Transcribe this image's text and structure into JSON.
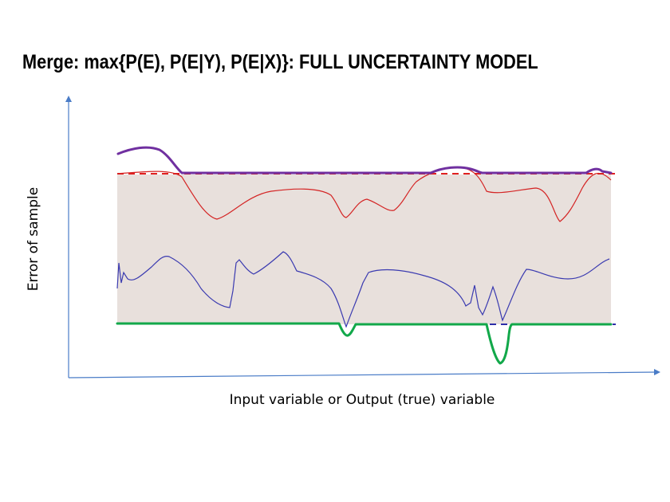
{
  "slide": {
    "title": "Merge: max{P(E), P(E|Y), P(E|X)}: FULL UNCERTAINTY MODEL"
  },
  "diagram": {
    "x_axis_label": "Input variable or Output (true) variable",
    "y_axis_label": "Error of sample",
    "colors": {
      "axis": "#4a7cc7",
      "uncertainty_band": "#e8e0dc",
      "upper_bound_dashed": "#e02020",
      "lower_bound_dashed": "#2d2da8",
      "upper_envelope": "#7030a0",
      "lower_envelope": "#12a84a",
      "red_error_curve": "#d42424",
      "blue_error_curve": "#3a3ab0"
    }
  }
}
